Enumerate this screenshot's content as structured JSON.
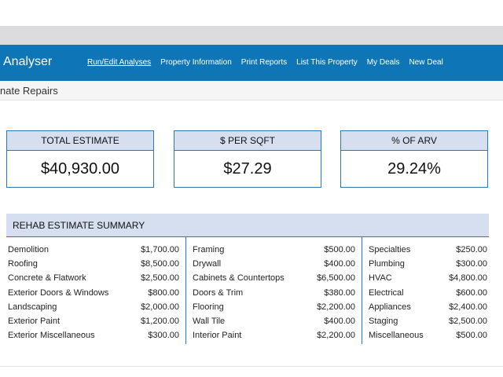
{
  "navbar": {
    "brand": "Analyser",
    "links": [
      "Run/Edit Analyses",
      "Property Information",
      "Print Reports",
      "List This Property",
      "My Deals",
      "New Deal"
    ]
  },
  "subheader": {
    "title": "nate Repairs"
  },
  "cards": [
    {
      "label": "TOTAL ESTIMATE",
      "value": "$40,930.00"
    },
    {
      "label": "$ PER SQFT",
      "value": "$27.29"
    },
    {
      "label": "% OF ARV",
      "value": "29.24%"
    }
  ],
  "summary": {
    "title": "REHAB ESTIMATE SUMMARY",
    "columns": [
      [
        {
          "name": "Demolition",
          "amount": "$1,700.00"
        },
        {
          "name": "Roofing",
          "amount": "$8,500.00"
        },
        {
          "name": "Concrete & Flatwork",
          "amount": "$2,500.00"
        },
        {
          "name": "Exterior Doors & Windows",
          "amount": "$800.00"
        },
        {
          "name": "Landscaping",
          "amount": "$2,000.00"
        },
        {
          "name": "Exterior Paint",
          "amount": "$1,200.00"
        },
        {
          "name": "Exterior Miscellaneous",
          "amount": "$300.00"
        }
      ],
      [
        {
          "name": "Framing",
          "amount": "$500.00"
        },
        {
          "name": "Drywall",
          "amount": "$400.00"
        },
        {
          "name": "Cabinets & Countertops",
          "amount": "$6,500.00"
        },
        {
          "name": "Doors & Trim",
          "amount": "$380.00"
        },
        {
          "name": "Flooring",
          "amount": "$2,200.00"
        },
        {
          "name": "Wall Tile",
          "amount": "$400.00"
        },
        {
          "name": "Interior Paint",
          "amount": "$2,200.00"
        }
      ],
      [
        {
          "name": "Specialties",
          "amount": "$250.00"
        },
        {
          "name": "Plumbing",
          "amount": "$300.00"
        },
        {
          "name": "HVAC",
          "amount": "$4,800.00"
        },
        {
          "name": "Electrical",
          "amount": "$600.00"
        },
        {
          "name": "Appliances",
          "amount": "$2,400.00"
        },
        {
          "name": "Staging",
          "amount": "$2,500.00"
        },
        {
          "name": "Miscellaneous",
          "amount": "$500.00"
        }
      ]
    ]
  },
  "colors": {
    "nav_bg": "#0e76b6",
    "card_header_bg": "#d6dff0",
    "border_blue": "#2b78b3"
  }
}
